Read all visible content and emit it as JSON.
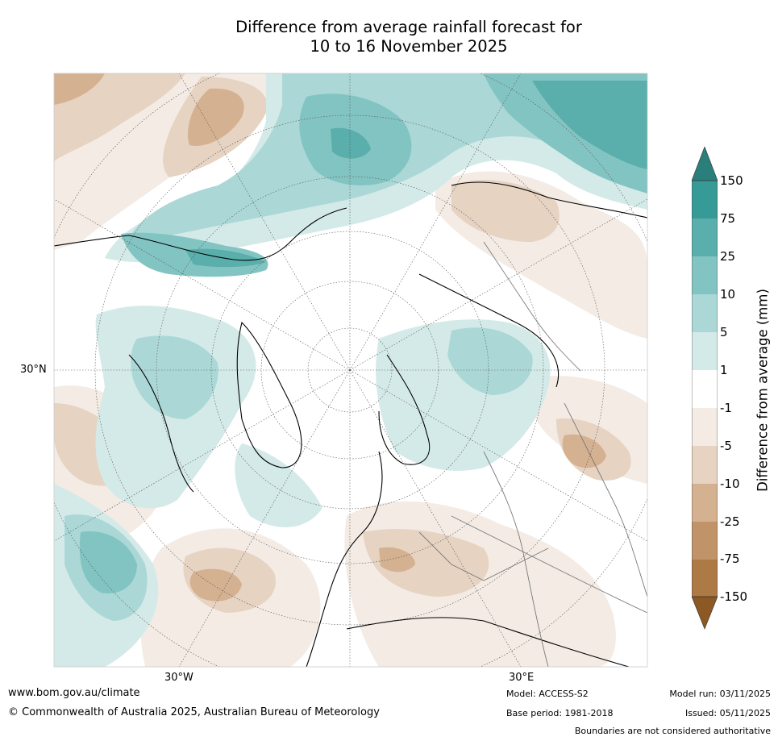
{
  "title": {
    "line1": "Difference from average rainfall forecast for",
    "line2": "10 to 16 November 2025"
  },
  "map": {
    "lat_label": "30°N",
    "lon_labels": [
      "30°W",
      "30°E"
    ]
  },
  "legend": {
    "title": "Difference from average (mm)",
    "ticks": [
      "150",
      "75",
      "25",
      "10",
      "5",
      "1",
      "-1",
      "-5",
      "-10",
      "-25",
      "-75",
      "-150"
    ],
    "colors": {
      "gt150": "#2a7f7b",
      "75_150": "#369a96",
      "25_75": "#5aaeab",
      "10_25": "#82c4c2",
      "5_10": "#abd8d6",
      "1_5": "#d4eae8",
      "m1_1": "#ffffff",
      "m5_m1": "#f3ebe4",
      "m10_m5": "#e6d3c2",
      "m25_m10": "#d4b190",
      "m75_m25": "#c09468",
      "m150_m75": "#ad7944",
      "lt_m150": "#8c5823"
    }
  },
  "footer": {
    "url": "www.bom.gov.au/climate",
    "copyright": "© Commonwealth of Australia 2025, Australian Bureau of Meteorology",
    "model": "Model: ACCESS-S2",
    "base_period": "Base period: 1981-2018",
    "model_run": "Model run: 03/11/2025",
    "issued": "Issued: 05/11/2025",
    "disclaimer": "Boundaries are not considered authoritative"
  }
}
